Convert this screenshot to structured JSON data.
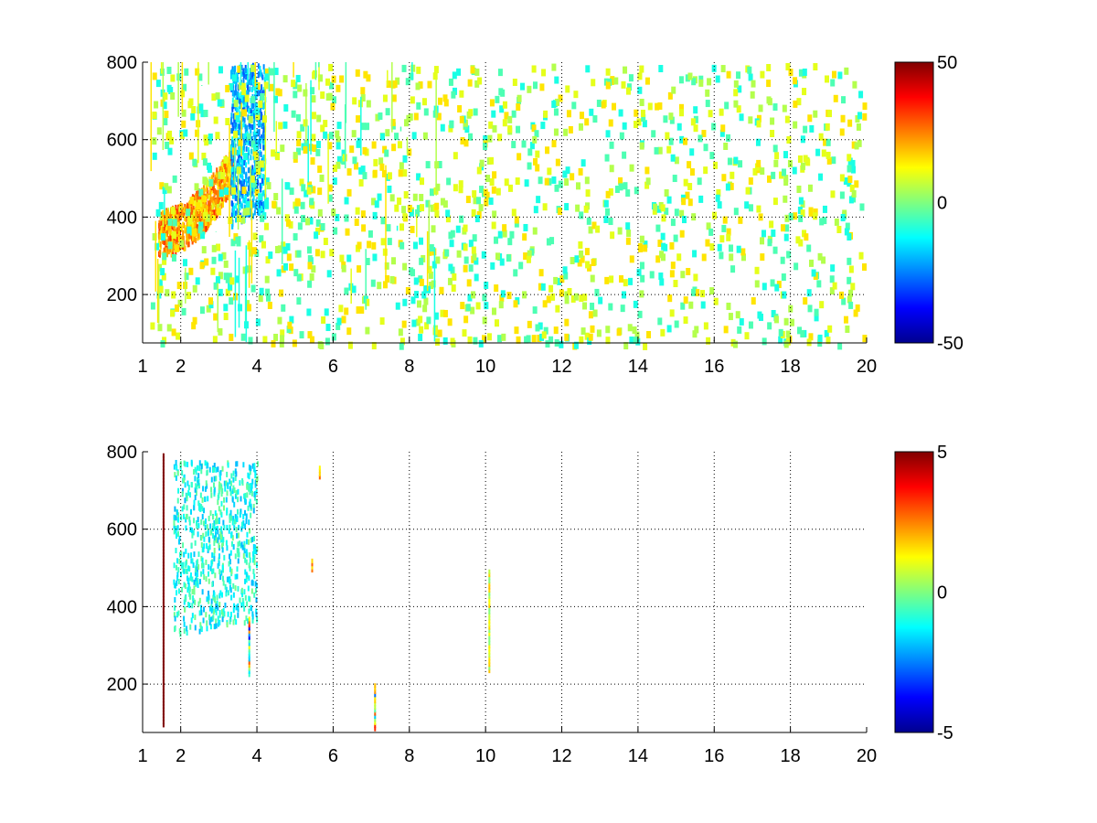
{
  "colormap": "jet",
  "chart_data": [
    {
      "type": "heatmap",
      "title": "",
      "xlabel": "",
      "ylabel": "",
      "xlim": [
        1,
        20
      ],
      "ylim": [
        75,
        800
      ],
      "xticks": [
        1,
        2,
        4,
        6,
        8,
        10,
        12,
        14,
        16,
        18,
        20
      ],
      "yticks": [
        200,
        400,
        600,
        800
      ],
      "grid": true,
      "colorbar": {
        "range": [
          -50,
          50
        ],
        "ticks": [
          50,
          0,
          -50
        ]
      },
      "features": [
        {
          "name": "",
          "x_range": [
            1.4,
            3.4
          ],
          "y_center_at_x_start": 340,
          "y_center_at_x_end": 520,
          "value": 30,
          "spread": 12
        },
        {
          "name": "",
          "x_range": [
            3.3,
            4.2
          ],
          "y_range": [
            380,
            800
          ],
          "value": -20,
          "spread": 10
        }
      ],
      "background_noise_values": [
        -10,
        -5,
        5,
        10,
        15
      ]
    },
    {
      "type": "heatmap",
      "title": "",
      "xlabel": "",
      "ylabel": "",
      "xlim": [
        1,
        20
      ],
      "ylim": [
        75,
        800
      ],
      "xticks": [
        1,
        2,
        4,
        6,
        8,
        10,
        12,
        14,
        16,
        18,
        20
      ],
      "yticks": [
        200,
        400,
        600,
        800
      ],
      "grid": true,
      "colorbar": {
        "range": [
          -5,
          5
        ],
        "ticks": [
          5,
          0,
          -5
        ]
      },
      "features": [
        {
          "name": "",
          "x_range": [
            1.8,
            4.0
          ],
          "y_range": [
            330,
            780
          ],
          "value": -1,
          "spread": 1
        },
        {
          "name": "",
          "x": 1.55,
          "y_range": [
            100,
            800
          ],
          "value": 5,
          "spread": 0
        },
        {
          "name": "",
          "x": 10.1,
          "y_range": [
            240,
            500
          ],
          "value": 1,
          "spread": 1
        },
        {
          "name": "",
          "x": 7.1,
          "y_range": [
            90,
            210
          ],
          "value": 0,
          "spread": 4
        },
        {
          "name": "",
          "x": 3.8,
          "y_range": [
            230,
            380
          ],
          "value": 0,
          "spread": 4
        },
        {
          "name": "",
          "x": 5.65,
          "y_range": [
            740,
            770
          ],
          "value": 2,
          "spread": 1
        },
        {
          "name": "",
          "x": 5.45,
          "y_range": [
            500,
            530
          ],
          "value": 2,
          "spread": 1
        }
      ]
    }
  ]
}
